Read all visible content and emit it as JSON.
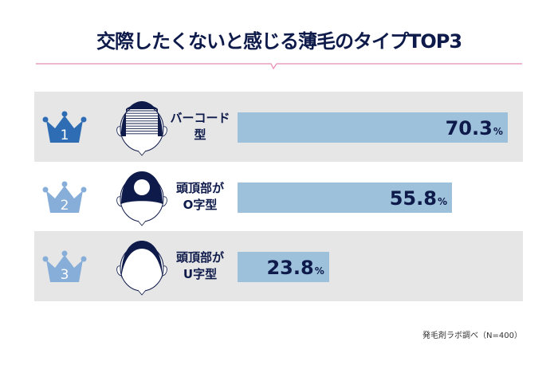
{
  "title": "交際したくないと感じる薄毛のタイプTOP3",
  "footnote": "発毛剤ラボ調べ（N=400）",
  "colors": {
    "navy": "#0e1a4a",
    "bar": "#9dc0db",
    "crown_first": "#2e6db4",
    "crown_other": "#86aed8",
    "pink": "#e88bb3",
    "row_bg": "#e6e6e6"
  },
  "chart_data": {
    "type": "bar",
    "orientation": "horizontal",
    "title": "交際したくないと感じる薄毛のタイプTOP3",
    "unit": "%",
    "categories": [
      "バーコード型",
      "頭頂部がO字型",
      "頭頂部がU字型"
    ],
    "ranks": [
      "1",
      "2",
      "3"
    ],
    "label_lines": [
      [
        "バーコード",
        "型"
      ],
      [
        "頭頂部が",
        "O字型"
      ],
      [
        "頭頂部が",
        "U字型"
      ]
    ],
    "icons": [
      "barcode-hair-head-icon",
      "o-shaped-bald-head-icon",
      "u-shaped-bald-head-icon"
    ],
    "values": [
      70.3,
      55.8,
      23.8
    ],
    "value_labels": [
      "70.3",
      "55.8",
      "23.8"
    ],
    "xlim": [
      0,
      100
    ]
  }
}
